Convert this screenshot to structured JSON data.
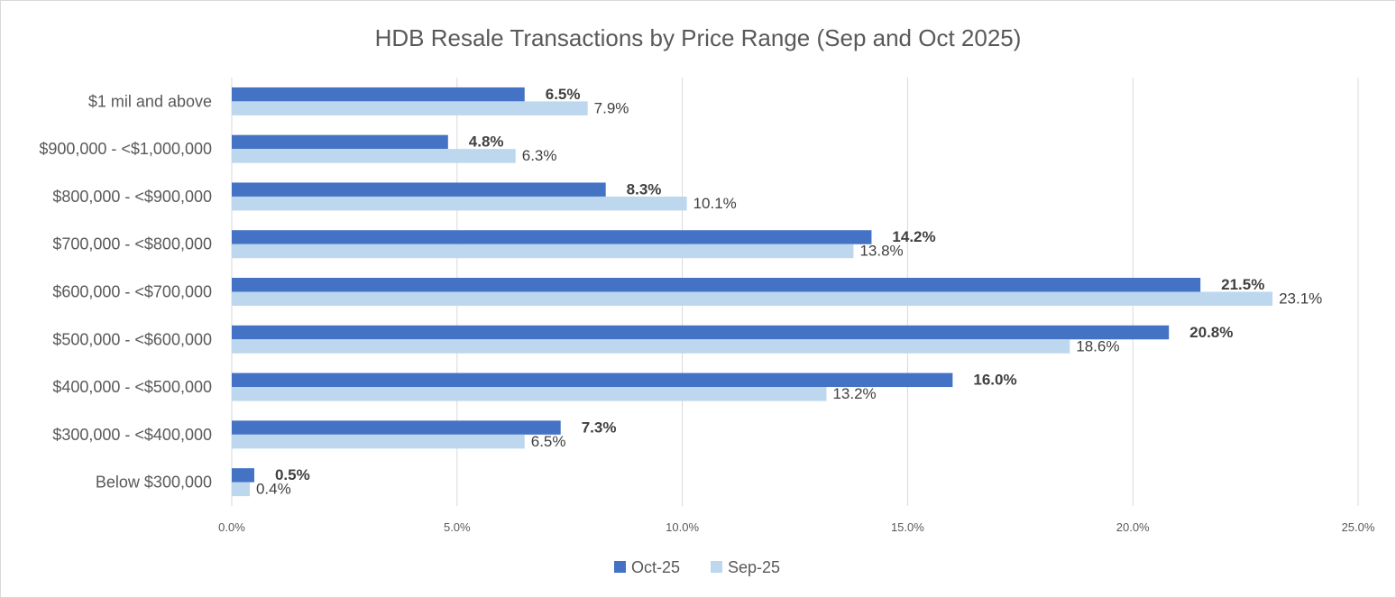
{
  "chart_data": {
    "type": "bar",
    "orientation": "horizontal",
    "title": "HDB Resale Transactions by Price Range (Sep and Oct 2025)",
    "xlabel": "",
    "ylabel": "",
    "xlim": [
      0,
      25
    ],
    "x_ticks": [
      "0.0%",
      "5.0%",
      "10.0%",
      "15.0%",
      "20.0%",
      "25.0%"
    ],
    "x_tick_values": [
      0,
      5,
      10,
      15,
      20,
      25
    ],
    "grid": true,
    "legend_position": "bottom",
    "categories": [
      "$1 mil and above",
      "$900,000 - <$1,000,000",
      "$800,000 - <$900,000",
      "$700,000 - <$800,000",
      "$600,000 - <$700,000",
      "$500,000 - <$600,000",
      "$400,000 - <$500,000",
      "$300,000 - <$400,000",
      "Below $300,000"
    ],
    "series": [
      {
        "name": "Oct-25",
        "color": "#4472c4",
        "label_bold": true,
        "values": [
          6.5,
          4.8,
          8.3,
          14.2,
          21.5,
          20.8,
          16.0,
          7.3,
          0.5
        ],
        "labels": [
          "6.5%",
          "4.8%",
          "8.3%",
          "14.2%",
          "21.5%",
          "20.8%",
          "16.0%",
          "7.3%",
          "0.5%"
        ]
      },
      {
        "name": "Sep-25",
        "color": "#bdd7ee",
        "label_bold": false,
        "values": [
          7.9,
          6.3,
          10.1,
          13.8,
          23.1,
          18.6,
          13.2,
          6.5,
          0.4
        ],
        "labels": [
          "7.9%",
          "6.3%",
          "10.1%",
          "13.8%",
          "23.1%",
          "18.6%",
          "13.2%",
          "6.5%",
          "0.4%"
        ]
      }
    ]
  }
}
